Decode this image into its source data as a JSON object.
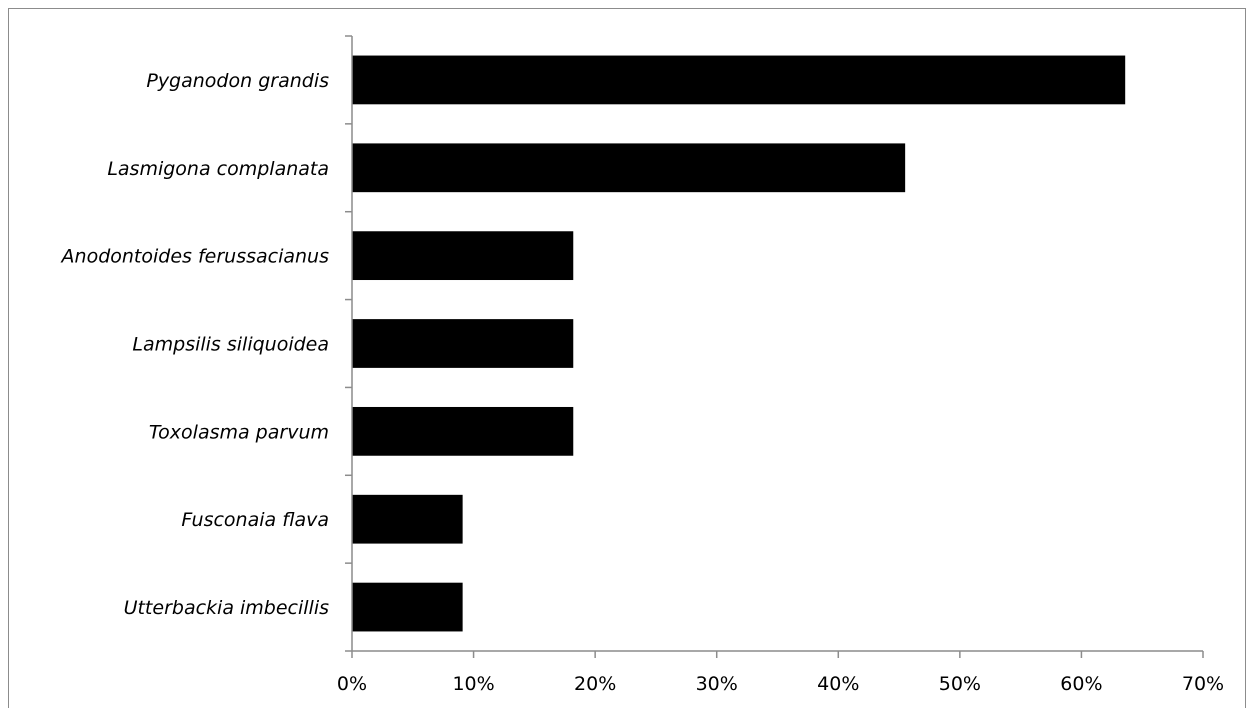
{
  "chart_data": {
    "type": "bar",
    "orientation": "horizontal",
    "categories": [
      "Pyganodon grandis",
      "Lasmigona complanata",
      "Anodontoides ferussacianus",
      "Lampsilis siliquoidea",
      "Toxolasma parvum",
      "Fusconaia flava",
      "Utterbackia imbecillis"
    ],
    "values": [
      63.6,
      45.5,
      18.2,
      18.2,
      18.2,
      9.1,
      9.1
    ],
    "xlim": [
      0,
      70
    ],
    "xticks": [
      0,
      10,
      20,
      30,
      40,
      50,
      60,
      70
    ],
    "xtick_labels": [
      "0%",
      "10%",
      "20%",
      "30%",
      "40%",
      "50%",
      "60%",
      "70%"
    ],
    "title": "",
    "xlabel": "",
    "ylabel": "",
    "grid": false,
    "legend": "none",
    "bar_color": "#000000",
    "axis_color": "#8c8c8c"
  }
}
